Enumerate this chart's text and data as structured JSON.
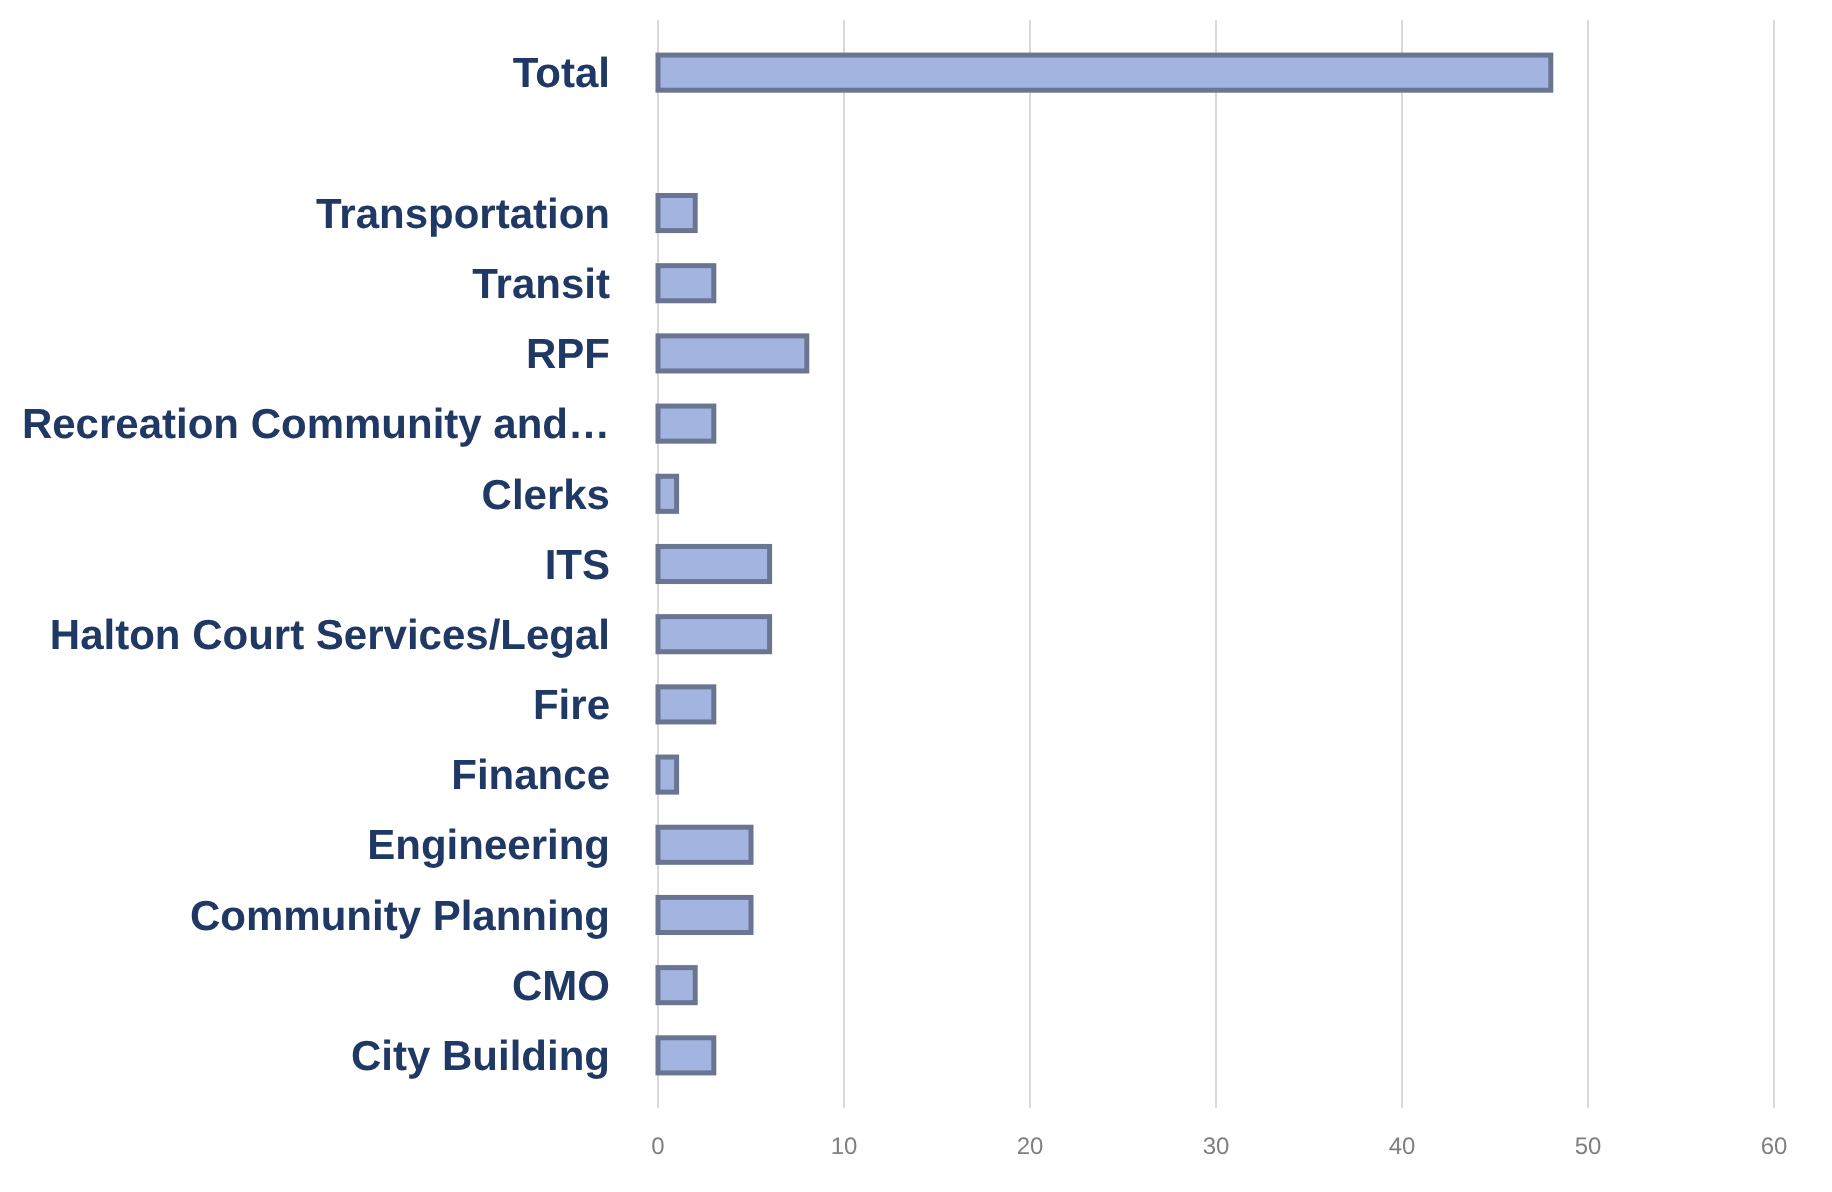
{
  "chart_data": {
    "type": "bar",
    "orientation": "horizontal",
    "categories": [
      "Total",
      null,
      "Transportation",
      "Transit",
      "RPF",
      "Recreation Community and…",
      "Clerks",
      "ITS",
      "Halton Court Services/Legal",
      "Fire",
      "Finance",
      "Engineering",
      "Community Planning",
      "CMO",
      "City Building"
    ],
    "values": [
      48,
      null,
      2,
      3,
      8,
      3,
      1,
      6,
      6,
      3,
      1,
      5,
      5,
      2,
      3
    ],
    "color": "#a3b4e0",
    "xlim": [
      0,
      60
    ],
    "xticks": [
      0,
      10,
      20,
      30,
      40,
      50,
      60
    ],
    "grid": "x"
  }
}
